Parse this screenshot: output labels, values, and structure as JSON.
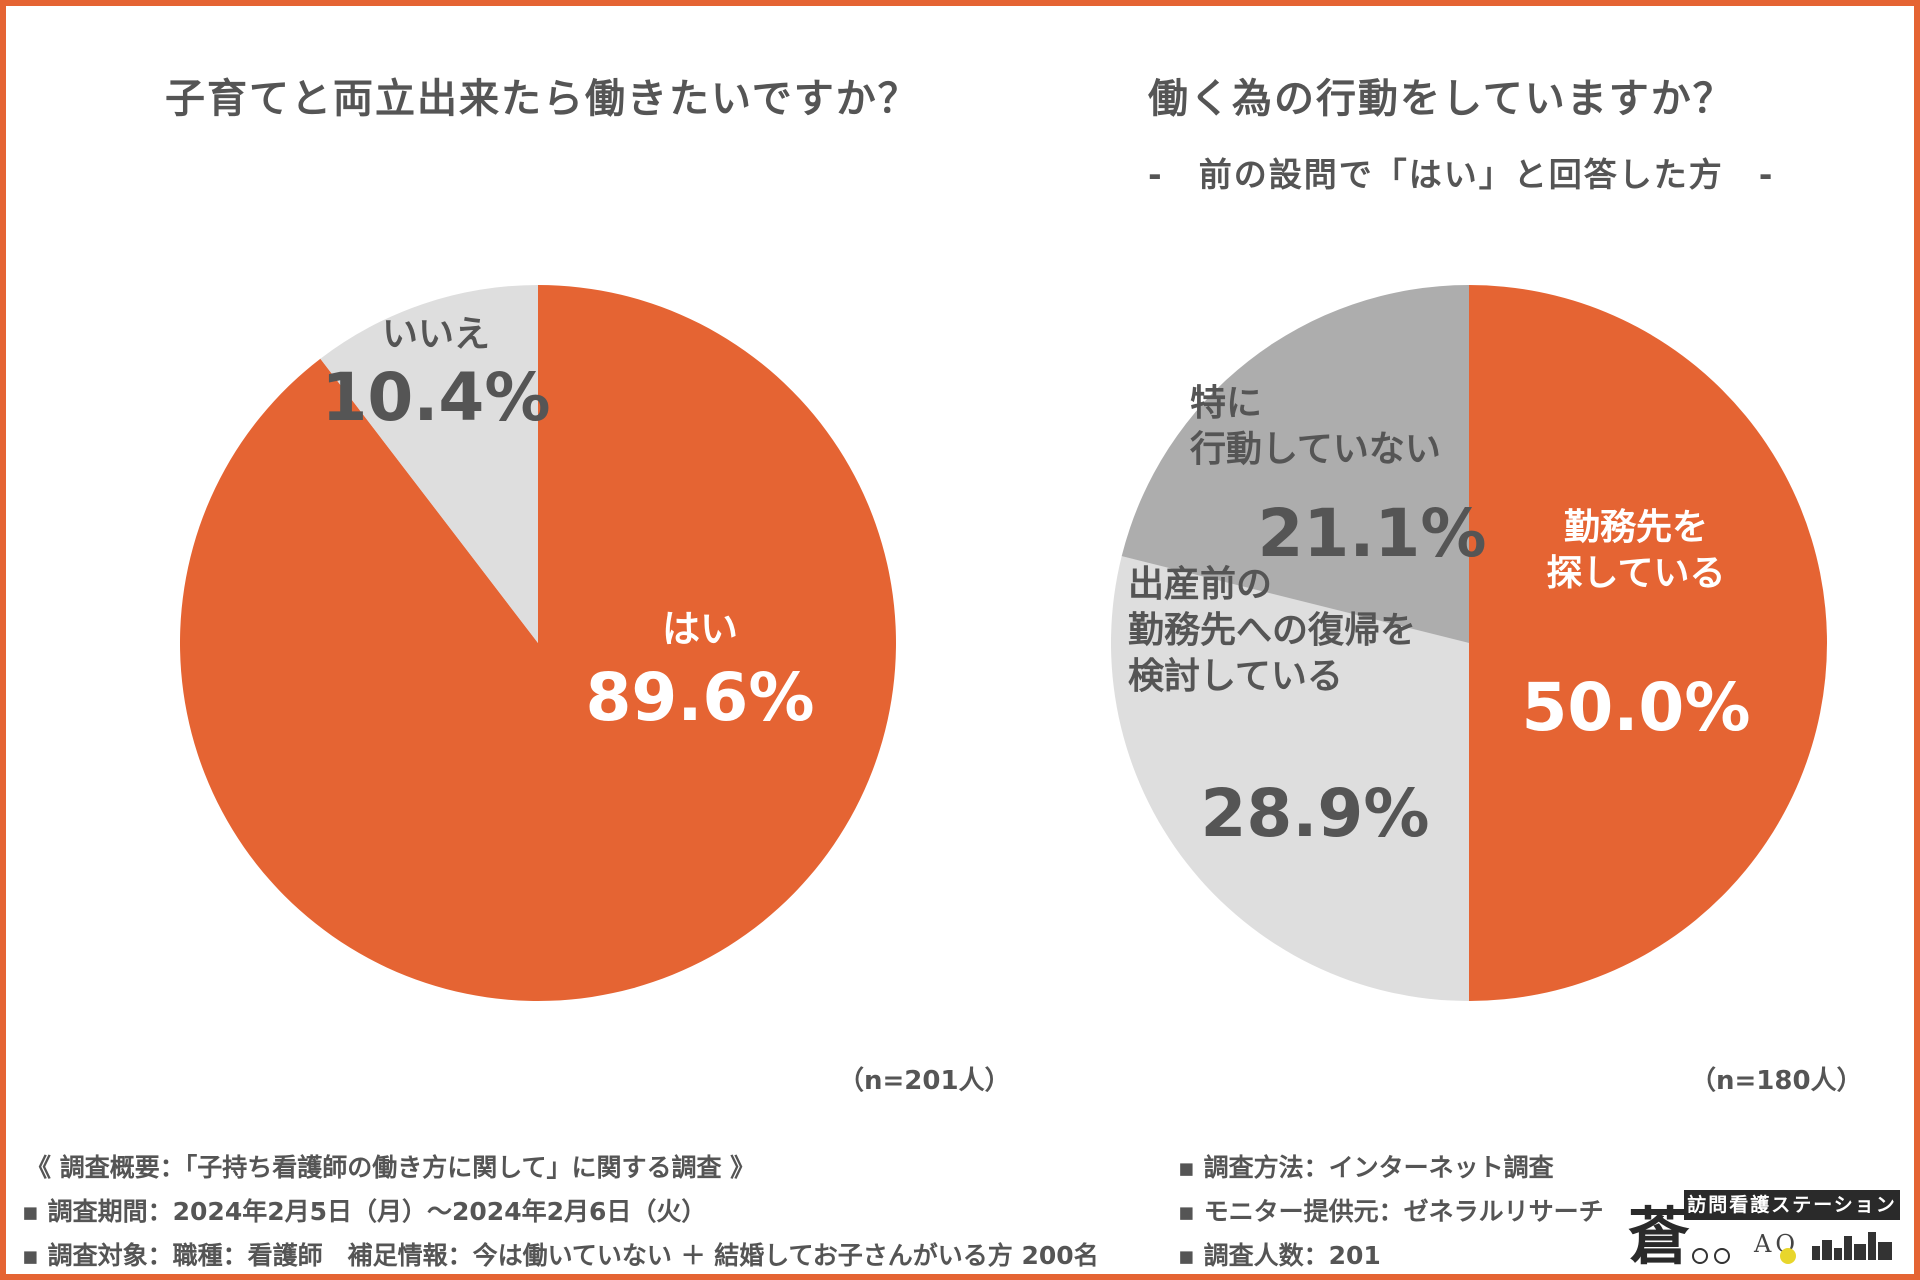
{
  "colors": {
    "accent": "#e56433",
    "light_gray": "#dedede",
    "mid_gray": "#adadad",
    "text": "#555555"
  },
  "chart_data": [
    {
      "type": "pie",
      "title": "子育てと両立出来たら働きたいですか？",
      "n_label": "（n=201人）",
      "slices": [
        {
          "label": "はい",
          "value": 89.6,
          "value_label": "89.6%",
          "color": "#e56433",
          "text_color": "#ffffff"
        },
        {
          "label": "いいえ",
          "value": 10.4,
          "value_label": "10.4%",
          "color": "#dedede",
          "text_color": "#555555"
        }
      ]
    },
    {
      "type": "pie",
      "title": "働く為の行動をしていますか？",
      "subtitle": "-　前の設問で「はい」と回答した方　-",
      "n_label": "（n=180人）",
      "slices": [
        {
          "label": "勤務先を\n探している",
          "value": 50.0,
          "value_label": "50.0%",
          "color": "#e56433",
          "text_color": "#ffffff"
        },
        {
          "label": "出産前の\n勤務先への復帰を\n検討している",
          "value": 28.9,
          "value_label": "28.9%",
          "color": "#dedede",
          "text_color": "#555555"
        },
        {
          "label": "特に\n行動していない",
          "value": 21.1,
          "value_label": "21.1%",
          "color": "#adadad",
          "text_color": "#555555"
        }
      ]
    }
  ],
  "footer": {
    "left": [
      "《 調査概要：「子持ち看護師の働き方に関して」に関する調査 》",
      "▪ 調査期間：2024年2月5日（月）〜2024年2月6日（火）",
      "▪ 調査対象：職種：看護師　補足情報：今は働いていない ＋ 結婚してお子さんがいる方 200名"
    ],
    "right": [
      "▪ 調査方法：インターネット調査",
      "▪ モニター提供元：ゼネラルリサーチ",
      "▪ 調査人数：201"
    ]
  },
  "logo": {
    "kanji": "蒼",
    "text": "訪問看護ステーション",
    "sub": "AO"
  }
}
